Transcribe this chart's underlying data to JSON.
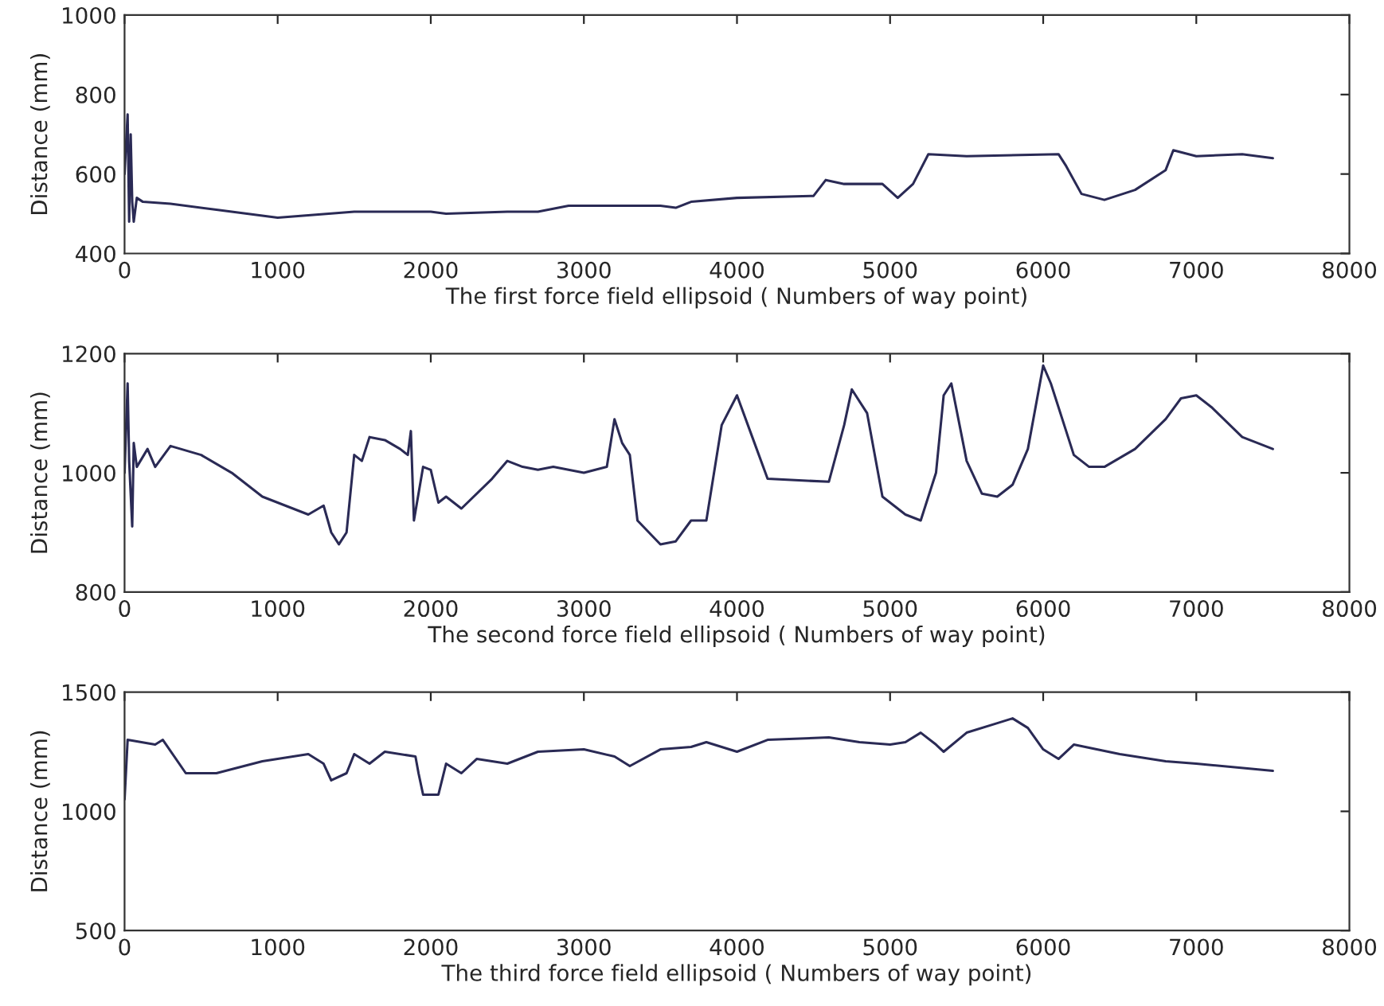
{
  "chart_data": [
    {
      "type": "line",
      "xlabel": "The first force field ellipsoid ( Numbers of way point)",
      "ylabel": "Distance (mm)",
      "xlim": [
        0,
        8000
      ],
      "ylim": [
        400,
        1000
      ],
      "xticks": [
        0,
        1000,
        2000,
        3000,
        4000,
        5000,
        6000,
        7000,
        8000
      ],
      "yticks": [
        400,
        600,
        800,
        1000
      ],
      "grid": false,
      "series": [
        {
          "color": "#2a2a55",
          "x": [
            0,
            20,
            30,
            40,
            50,
            60,
            80,
            120,
            300,
            600,
            900,
            1000,
            1500,
            2000,
            2100,
            2500,
            2700,
            2900,
            3500,
            3600,
            3700,
            4000,
            4500,
            4580,
            4700,
            4950,
            5050,
            5150,
            5250,
            5500,
            6100,
            6150,
            6250,
            6400,
            6600,
            6800,
            6850,
            7000,
            7300,
            7500
          ],
          "values": [
            600,
            750,
            480,
            700,
            530,
            480,
            540,
            530,
            525,
            510,
            495,
            490,
            505,
            505,
            500,
            505,
            505,
            520,
            520,
            515,
            530,
            540,
            545,
            585,
            575,
            575,
            540,
            575,
            650,
            645,
            650,
            620,
            550,
            535,
            560,
            610,
            660,
            645,
            650,
            640
          ]
        }
      ]
    },
    {
      "type": "line",
      "xlabel": "The second force field ellipsoid ( Numbers of way point)",
      "ylabel": "Distance (mm)",
      "xlim": [
        0,
        8000
      ],
      "ylim": [
        800,
        1200
      ],
      "xticks": [
        0,
        1000,
        2000,
        3000,
        4000,
        5000,
        6000,
        7000,
        8000
      ],
      "yticks": [
        800,
        1000,
        1200
      ],
      "grid": false,
      "series": [
        {
          "color": "#2a2a55",
          "x": [
            0,
            20,
            30,
            50,
            60,
            80,
            150,
            200,
            300,
            500,
            700,
            900,
            1100,
            1200,
            1300,
            1350,
            1400,
            1450,
            1500,
            1550,
            1600,
            1700,
            1800,
            1850,
            1870,
            1890,
            1950,
            2000,
            2050,
            2100,
            2200,
            2400,
            2500,
            2600,
            2700,
            2800,
            3000,
            3150,
            3200,
            3250,
            3300,
            3350,
            3500,
            3600,
            3700,
            3800,
            3900,
            4000,
            4100,
            4200,
            4600,
            4700,
            4750,
            4850,
            4950,
            5100,
            5200,
            5300,
            5350,
            5400,
            5500,
            5600,
            5700,
            5800,
            5900,
            6000,
            6050,
            6200,
            6300,
            6400,
            6600,
            6800,
            6900,
            7000,
            7100,
            7300,
            7500
          ],
          "values": [
            1000,
            1150,
            1020,
            910,
            1050,
            1010,
            1040,
            1010,
            1045,
            1030,
            1000,
            960,
            940,
            930,
            945,
            900,
            880,
            900,
            1030,
            1020,
            1060,
            1055,
            1040,
            1030,
            1070,
            920,
            1010,
            1005,
            950,
            960,
            940,
            990,
            1020,
            1010,
            1005,
            1010,
            1000,
            1010,
            1090,
            1050,
            1030,
            920,
            880,
            885,
            920,
            920,
            1080,
            1130,
            1060,
            990,
            985,
            1080,
            1140,
            1100,
            960,
            930,
            920,
            1000,
            1130,
            1150,
            1020,
            965,
            960,
            980,
            1040,
            1180,
            1150,
            1030,
            1010,
            1010,
            1040,
            1090,
            1125,
            1130,
            1110,
            1060,
            1040
          ]
        }
      ]
    },
    {
      "type": "line",
      "xlabel": "The third force field ellipsoid ( Numbers of way point)",
      "ylabel": "Distance (mm)",
      "xlim": [
        0,
        8000
      ],
      "ylim": [
        500,
        1500
      ],
      "xticks": [
        0,
        1000,
        2000,
        3000,
        4000,
        5000,
        6000,
        7000,
        8000
      ],
      "yticks": [
        500,
        1000,
        1500
      ],
      "grid": false,
      "series": [
        {
          "color": "#2a2a55",
          "x": [
            0,
            20,
            200,
            250,
            400,
            600,
            900,
            1100,
            1200,
            1300,
            1350,
            1450,
            1500,
            1600,
            1700,
            1900,
            1920,
            1950,
            2050,
            2100,
            2200,
            2300,
            2500,
            2700,
            3000,
            3200,
            3300,
            3500,
            3700,
            3800,
            4000,
            4200,
            4600,
            4800,
            5000,
            5100,
            5200,
            5300,
            5350,
            5500,
            5700,
            5800,
            5900,
            6000,
            6100,
            6200,
            6500,
            6800,
            7000,
            7500
          ],
          "values": [
            1050,
            1300,
            1280,
            1300,
            1160,
            1160,
            1210,
            1230,
            1240,
            1200,
            1130,
            1160,
            1240,
            1200,
            1250,
            1230,
            1160,
            1070,
            1070,
            1200,
            1160,
            1220,
            1200,
            1250,
            1260,
            1230,
            1190,
            1260,
            1270,
            1290,
            1250,
            1300,
            1310,
            1290,
            1280,
            1290,
            1330,
            1280,
            1250,
            1330,
            1370,
            1390,
            1350,
            1260,
            1220,
            1280,
            1240,
            1210,
            1200,
            1170
          ]
        }
      ]
    }
  ]
}
